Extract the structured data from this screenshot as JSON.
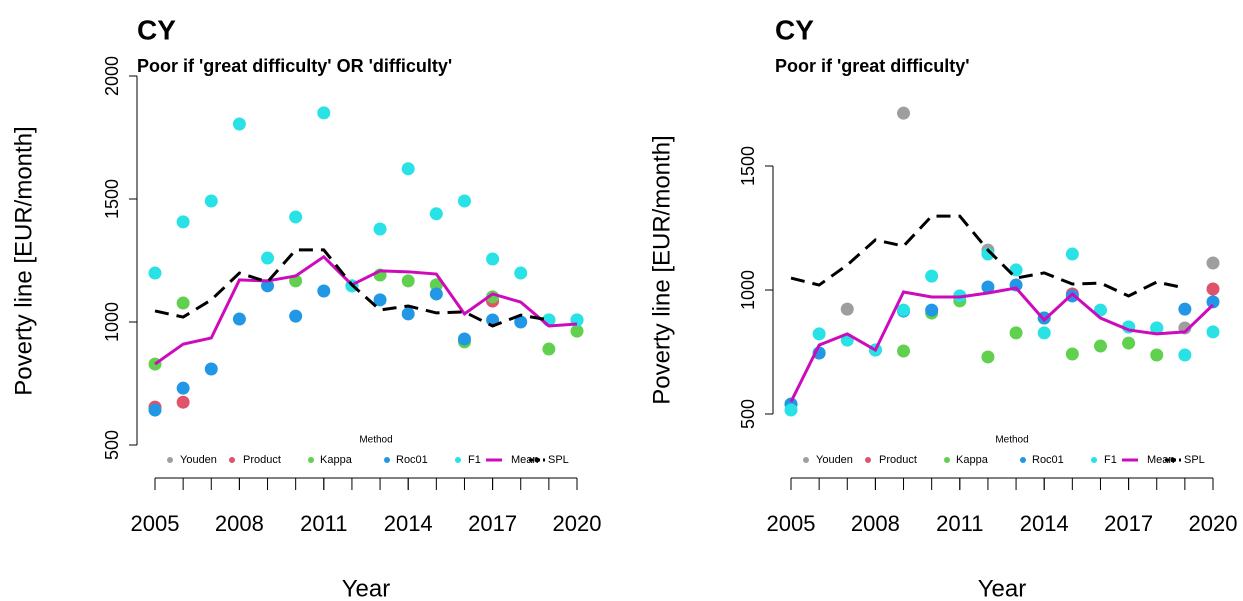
{
  "chart_data": [
    {
      "type": "line",
      "title": "CY",
      "subtitle": "Poor if 'great difficulty' OR 'difficulty'",
      "x_label": "Year",
      "y_label": "Poverty line [EUR/month]",
      "legend_title": "Method",
      "x": [
        2005,
        2006,
        2007,
        2008,
        2009,
        2010,
        2011,
        2012,
        2013,
        2014,
        2015,
        2016,
        2017,
        2018,
        2019,
        2020
      ],
      "xlim": [
        2005,
        2020
      ],
      "xticks": [
        2005,
        2008,
        2011,
        2014,
        2017,
        2020
      ],
      "ylim": [
        500,
        2000
      ],
      "yticks": [
        500,
        1000,
        1500,
        2000
      ],
      "series": [
        {
          "name": "Youden",
          "color": "#9e9e9e",
          "style": "points",
          "values": [
            null,
            null,
            null,
            null,
            null,
            null,
            null,
            null,
            null,
            null,
            null,
            null,
            null,
            null,
            null,
            null
          ]
        },
        {
          "name": "Product",
          "color": "#df536b",
          "style": "points",
          "values": [
            654,
            674,
            null,
            null,
            null,
            null,
            null,
            null,
            null,
            null,
            null,
            null,
            1085,
            null,
            null,
            null
          ]
        },
        {
          "name": "Kappa",
          "color": "#61d04f",
          "style": "points",
          "values": [
            829,
            1077,
            null,
            null,
            null,
            1167,
            null,
            null,
            1191,
            1167,
            1151,
            919,
            1102,
            null,
            890,
            963
          ]
        },
        {
          "name": "Roc01",
          "color": "#2297e6",
          "style": "points",
          "values": [
            642,
            731,
            809,
            1012,
            1147,
            1024,
            1126,
            1147,
            1090,
            1033,
            1114,
            931,
            1008,
            1000,
            1008,
            1008
          ]
        },
        {
          "name": "F1",
          "color": "#28e2e5",
          "style": "points",
          "values": [
            1199,
            1407,
            1492,
            1805,
            1260,
            1427,
            1850,
            1147,
            1378,
            1623,
            1440,
            1492,
            1256,
            1199,
            1008,
            1008
          ]
        },
        {
          "name": "Mean",
          "color": "#cd0bbc",
          "style": "line",
          "dashed": false,
          "values": [
            829,
            910,
            935,
            1171,
            1167,
            1187,
            1265,
            1151,
            1208,
            1204,
            1195,
            1033,
            1114,
            1081,
            984,
            992
          ]
        },
        {
          "name": "SPL",
          "color": "#000000",
          "style": "line",
          "dashed": true,
          "values": [
            1045,
            1020,
            1090,
            1199,
            1163,
            1293,
            1293,
            1151,
            1049,
            1065,
            1037,
            1041,
            984,
            1028,
            1008,
            null
          ]
        }
      ]
    },
    {
      "type": "line",
      "title": "CY",
      "subtitle": "Poor if 'great difficulty'",
      "x_label": "Year",
      "y_label": "Poverty line [EUR/month]",
      "legend_title": "Method",
      "x": [
        2005,
        2006,
        2007,
        2008,
        2009,
        2010,
        2011,
        2012,
        2013,
        2014,
        2015,
        2016,
        2017,
        2018,
        2019,
        2020
      ],
      "xlim": [
        2005,
        2020
      ],
      "xticks": [
        2005,
        2008,
        2011,
        2014,
        2017,
        2020
      ],
      "ylim": [
        500,
        1500
      ],
      "yticks": [
        500,
        1000,
        1500
      ],
      "series": [
        {
          "name": "Youden",
          "color": "#9e9e9e",
          "style": "points",
          "values": [
            null,
            null,
            923,
            null,
            1713,
            null,
            null,
            1161,
            null,
            null,
            null,
            null,
            null,
            null,
            847,
            1109
          ]
        },
        {
          "name": "Product",
          "color": "#df536b",
          "style": "points",
          "values": [
            null,
            null,
            null,
            null,
            null,
            null,
            null,
            null,
            null,
            null,
            984,
            null,
            null,
            null,
            null,
            1004
          ]
        },
        {
          "name": "Kappa",
          "color": "#61d04f",
          "style": "points",
          "values": [
            540,
            746,
            null,
            null,
            754,
            907,
            956,
            730,
            827,
            887,
            742,
            774,
            786,
            738,
            null,
            null
          ]
        },
        {
          "name": "Roc01",
          "color": "#2297e6",
          "style": "points",
          "values": [
            540,
            746,
            null,
            758,
            915,
            919,
            976,
            1012,
            1020,
            887,
            976,
            null,
            851,
            847,
            923,
            952
          ]
        },
        {
          "name": "F1",
          "color": "#28e2e5",
          "style": "points",
          "values": [
            516,
            823,
            798,
            758,
            919,
            1056,
            976,
            1145,
            1081,
            827,
            1145,
            919,
            851,
            847,
            738,
            831
          ]
        },
        {
          "name": "Mean",
          "color": "#cd0bbc",
          "style": "line",
          "dashed": false,
          "values": [
            549,
            778,
            823,
            758,
            992,
            972,
            972,
            988,
            1008,
            879,
            984,
            887,
            839,
            823,
            831,
            940
          ]
        },
        {
          "name": "SPL",
          "color": "#000000",
          "style": "line",
          "dashed": true,
          "values": [
            1048,
            1020,
            1101,
            1202,
            1177,
            1298,
            1298,
            1161,
            1048,
            1069,
            1024,
            1028,
            976,
            1032,
            1008,
            null
          ]
        }
      ]
    }
  ]
}
